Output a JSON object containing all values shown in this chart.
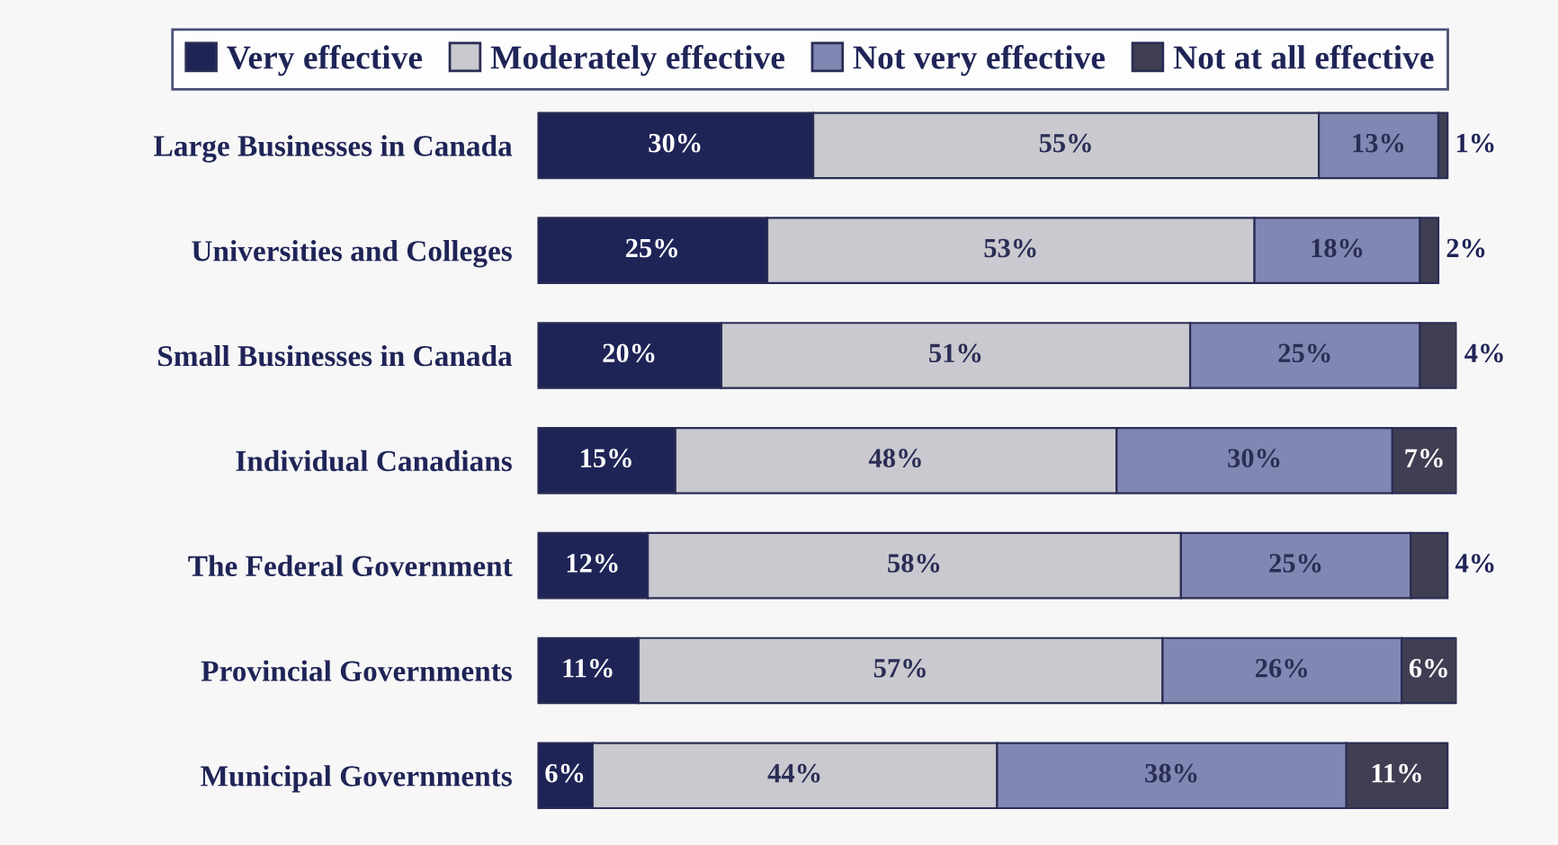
{
  "chart_data": {
    "type": "bar",
    "orientation": "horizontal",
    "stacked": true,
    "legend": "top",
    "grid": false,
    "categories": [
      "Large Businesses in Canada",
      "Universities and Colleges",
      "Small Businesses in Canada",
      "Individual Canadians",
      "The Federal Government",
      "Provincial Governments",
      "Municipal Governments"
    ],
    "series": [
      {
        "name": "Very effective",
        "color": "#1f2457",
        "values": [
          30,
          25,
          20,
          15,
          12,
          11,
          6
        ],
        "value_labels": [
          "30%",
          "25%",
          "20%",
          "15%",
          "12%",
          "11%",
          "6%"
        ]
      },
      {
        "name": "Moderately effective",
        "color": "#c9c9cf",
        "values": [
          55,
          53,
          51,
          48,
          58,
          57,
          44
        ],
        "value_labels": [
          "55%",
          "53%",
          "51%",
          "48%",
          "58%",
          "57%",
          "44%"
        ]
      },
      {
        "name": "Not very effective",
        "color": "#8087b3",
        "values": [
          13,
          18,
          25,
          30,
          25,
          26,
          38
        ],
        "value_labels": [
          "13%",
          "18%",
          "25%",
          "30%",
          "25%",
          "26%",
          "38%"
        ]
      },
      {
        "name": "Not at all effective",
        "color": "#3f3e52",
        "values": [
          1,
          2,
          4,
          7,
          4,
          6,
          11
        ],
        "value_labels": [
          "1%",
          "2%",
          "4%",
          "7%",
          "4%",
          "6%",
          "11%"
        ]
      }
    ]
  }
}
